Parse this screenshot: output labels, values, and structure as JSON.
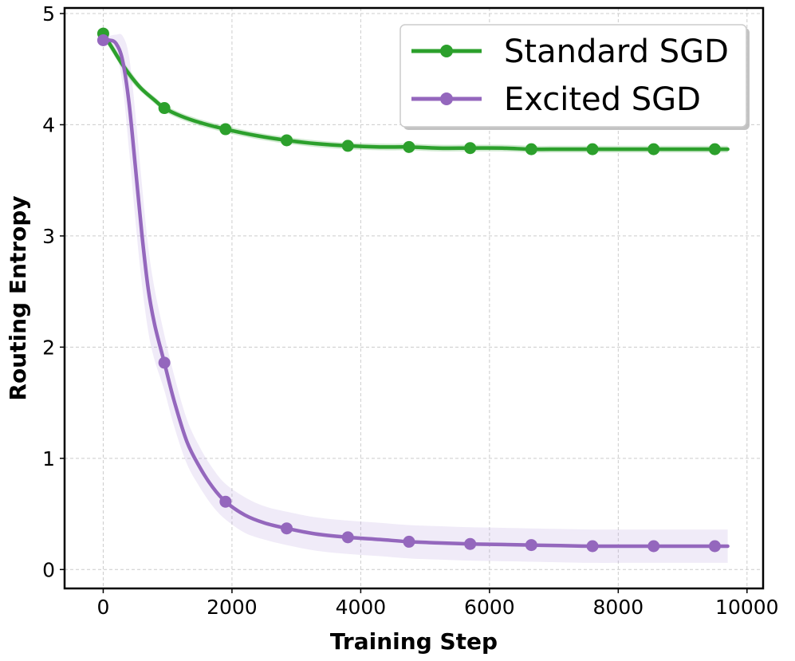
{
  "chart_data": {
    "type": "line",
    "title": "",
    "xlabel": "Training Step",
    "ylabel": "Routing Entropy",
    "xlim": [
      -600,
      10250
    ],
    "ylim": [
      -0.17,
      5.05
    ],
    "xticks": [
      0,
      2000,
      4000,
      6000,
      8000,
      10000
    ],
    "xtick_labels": [
      "0",
      "2000",
      "4000",
      "6000",
      "8000",
      "10000"
    ],
    "yticks": [
      0,
      1,
      2,
      3,
      4,
      5
    ],
    "ytick_labels": [
      "0",
      "1",
      "2",
      "3",
      "4",
      "5"
    ],
    "grid": true,
    "legend_position": "top-right",
    "series": [
      {
        "name": "Standard SGD",
        "color": "#2ca02c",
        "band_color": "#2ca02c",
        "x": [
          0,
          150,
          300,
          450,
          600,
          800,
          950,
          1200,
          1500,
          1900,
          2400,
          2850,
          3300,
          3800,
          4300,
          4750,
          5200,
          5700,
          6200,
          6650,
          7100,
          7600,
          8100,
          8550,
          9000,
          9500,
          9700
        ],
        "y": [
          4.82,
          4.68,
          4.54,
          4.42,
          4.32,
          4.22,
          4.15,
          4.08,
          4.02,
          3.96,
          3.9,
          3.86,
          3.83,
          3.81,
          3.8,
          3.8,
          3.79,
          3.79,
          3.79,
          3.78,
          3.78,
          3.78,
          3.78,
          3.78,
          3.78,
          3.78,
          3.78
        ],
        "band_width": [
          0.04,
          0.04,
          0.04,
          0.04,
          0.03,
          0.03,
          0.03,
          0.03,
          0.03,
          0.03,
          0.03,
          0.03,
          0.03,
          0.03,
          0.03,
          0.03,
          0.03,
          0.03,
          0.03,
          0.03,
          0.03,
          0.03,
          0.03,
          0.03,
          0.03,
          0.03,
          0.03
        ],
        "marker_x": [
          0,
          950,
          1900,
          2850,
          3800,
          4750,
          5700,
          6650,
          7600,
          8550,
          9500
        ],
        "marker_y": [
          4.82,
          4.15,
          3.96,
          3.86,
          3.81,
          3.8,
          3.79,
          3.78,
          3.78,
          3.78,
          3.78
        ]
      },
      {
        "name": "Excited SGD",
        "color": "#9467bd",
        "band_color": "#b9a2dd",
        "x": [
          0,
          100,
          200,
          300,
          400,
          500,
          600,
          700,
          800,
          950,
          1100,
          1300,
          1500,
          1700,
          1900,
          2200,
          2500,
          2850,
          3300,
          3800,
          4300,
          4750,
          5200,
          5700,
          6200,
          6650,
          7100,
          7600,
          8100,
          8550,
          9000,
          9500,
          9700
        ],
        "y": [
          4.76,
          4.76,
          4.73,
          4.58,
          4.2,
          3.62,
          3.02,
          2.52,
          2.2,
          1.86,
          1.52,
          1.15,
          0.92,
          0.74,
          0.61,
          0.49,
          0.42,
          0.37,
          0.32,
          0.29,
          0.27,
          0.25,
          0.24,
          0.23,
          0.225,
          0.22,
          0.215,
          0.21,
          0.21,
          0.21,
          0.21,
          0.21,
          0.21
        ],
        "band_width": [
          0.02,
          0.04,
          0.08,
          0.22,
          0.42,
          0.48,
          0.45,
          0.38,
          0.32,
          0.25,
          0.23,
          0.2,
          0.18,
          0.17,
          0.16,
          0.16,
          0.15,
          0.15,
          0.15,
          0.15,
          0.15,
          0.15,
          0.15,
          0.15,
          0.15,
          0.15,
          0.15,
          0.15,
          0.15,
          0.15,
          0.15,
          0.15,
          0.15
        ],
        "marker_x": [
          0,
          950,
          1900,
          2850,
          3800,
          4750,
          5700,
          6650,
          7600,
          8550,
          9500
        ],
        "marker_y": [
          4.76,
          1.86,
          0.61,
          0.37,
          0.29,
          0.25,
          0.23,
          0.22,
          0.21,
          0.21,
          0.21
        ]
      }
    ]
  }
}
